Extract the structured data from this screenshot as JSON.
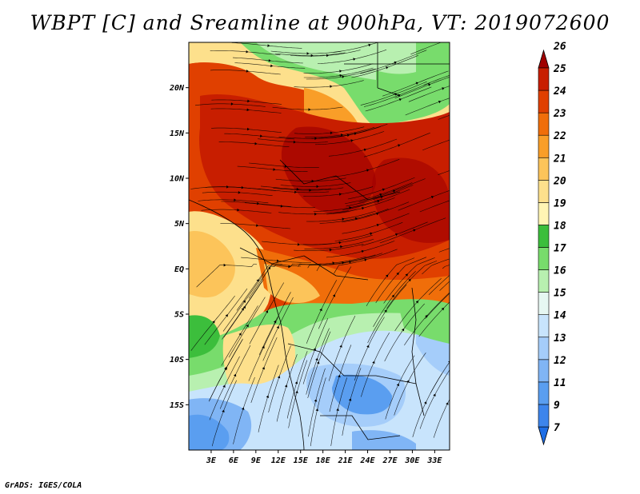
{
  "title": "WBPT [C] and Sreamline at 900hPa, VT: 2019072600",
  "credit": "GrADS: IGES/COLA",
  "map": {
    "lon_range": [
      0,
      35
    ],
    "lat_range": [
      -20,
      25
    ],
    "x_ticks": [
      {
        "value": 3,
        "label": "3E"
      },
      {
        "value": 6,
        "label": "6E"
      },
      {
        "value": 9,
        "label": "9E"
      },
      {
        "value": 12,
        "label": "12E"
      },
      {
        "value": 15,
        "label": "15E"
      },
      {
        "value": 18,
        "label": "18E"
      },
      {
        "value": 21,
        "label": "21E"
      },
      {
        "value": 24,
        "label": "24E"
      },
      {
        "value": 27,
        "label": "27E"
      },
      {
        "value": 30,
        "label": "30E"
      },
      {
        "value": 33,
        "label": "33E"
      }
    ],
    "y_ticks": [
      {
        "value": 20,
        "label": "20N"
      },
      {
        "value": 15,
        "label": "15N"
      },
      {
        "value": 10,
        "label": "10N"
      },
      {
        "value": 5,
        "label": "5N"
      },
      {
        "value": 0,
        "label": "EQ"
      },
      {
        "value": -5,
        "label": "5S"
      },
      {
        "value": -10,
        "label": "10S"
      },
      {
        "value": -15,
        "label": "15S"
      }
    ]
  },
  "colorbar": {
    "levels": [
      "7",
      "9",
      "11",
      "12",
      "13",
      "14",
      "15",
      "16",
      "17",
      "18",
      "19",
      "20",
      "21",
      "22",
      "23",
      "24",
      "25",
      "26"
    ],
    "colors": [
      "#1e6ee6",
      "#3d85ec",
      "#5a9ef0",
      "#80b5f5",
      "#a5cdfa",
      "#c8e4fc",
      "#e6f7f2",
      "#b8f0b0",
      "#78dc6c",
      "#3cbe3c",
      "#fff5b4",
      "#fde08c",
      "#fcc45a",
      "#f99e28",
      "#f06e0a",
      "#e04000",
      "#c81e00",
      "#a00000"
    ]
  }
}
